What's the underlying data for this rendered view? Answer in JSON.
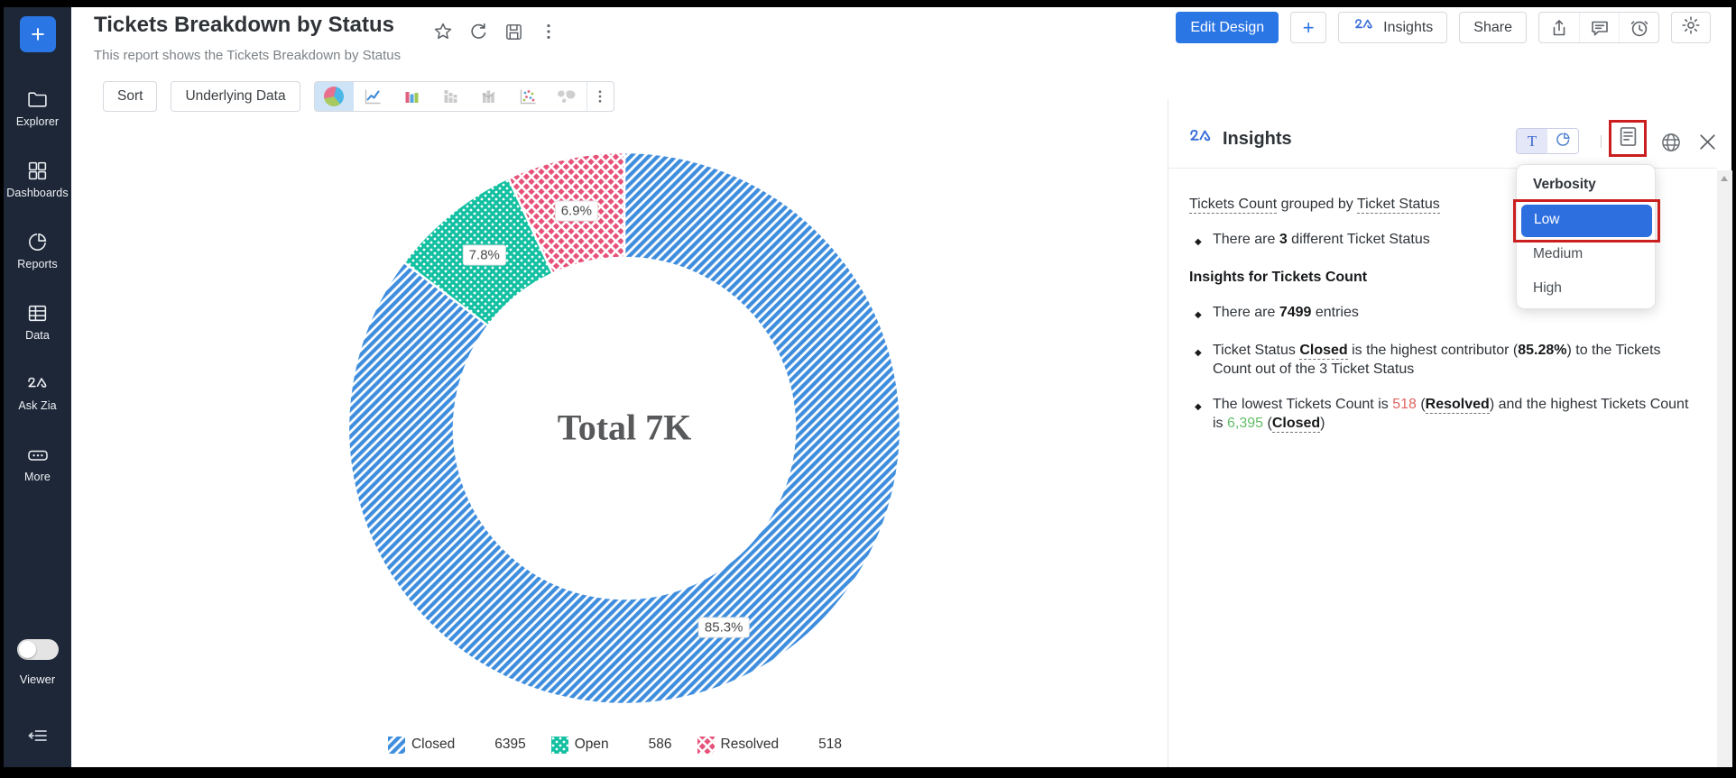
{
  "sidebar": {
    "plus_label": "+",
    "items": [
      {
        "label": "Explorer",
        "icon": "folder-icon"
      },
      {
        "label": "Dashboards",
        "icon": "dashboards-icon"
      },
      {
        "label": "Reports",
        "icon": "reports-pie-icon"
      },
      {
        "label": "Data",
        "icon": "data-table-icon"
      },
      {
        "label": "Ask Zia",
        "icon": "zia-icon"
      },
      {
        "label": "More",
        "icon": "more-ellipsis-icon"
      }
    ],
    "viewer_label": "Viewer"
  },
  "header": {
    "title": "Tickets Breakdown by Status",
    "subtitle": "This report shows the Tickets Breakdown by Status",
    "edit_design_label": "Edit Design",
    "plus_label": "+",
    "insights_label": "Insights",
    "share_label": "Share"
  },
  "toolbar": {
    "sort_label": "Sort",
    "underlying_data_label": "Underlying Data"
  },
  "chart_data": {
    "type": "pie",
    "donut": true,
    "title_center": "Total 7K",
    "categories": [
      "Closed",
      "Open",
      "Resolved"
    ],
    "values": [
      6395,
      586,
      518
    ],
    "percent_labels": [
      "85.3%",
      "7.8%",
      "6.9%"
    ],
    "total_entries": 7499,
    "colors": [
      "#3f8ede",
      "#14c0a2",
      "#e65279"
    ],
    "patterns": [
      "diagonal-stripes",
      "dots",
      "crosshatch"
    ],
    "legend_position": "bottom"
  },
  "insights_panel": {
    "title": "Insights",
    "toggle_text_label": "T",
    "blocks": [
      {
        "type": "summary",
        "segments": [
          {
            "t": "Tickets Count",
            "s": "u"
          },
          {
            "t": " grouped by ",
            "s": ""
          },
          {
            "t": "Ticket Status",
            "s": "u"
          }
        ]
      },
      {
        "type": "bullet",
        "segments": [
          {
            "t": "There are ",
            "s": ""
          },
          {
            "t": "3",
            "s": "b"
          },
          {
            "t": " different Ticket Status",
            "s": ""
          }
        ]
      },
      {
        "type": "heading",
        "segments": [
          {
            "t": "Insights for Tickets Count",
            "s": "b"
          }
        ]
      },
      {
        "type": "bullet",
        "segments": [
          {
            "t": "There are ",
            "s": ""
          },
          {
            "t": "7499",
            "s": "b"
          },
          {
            "t": " entries",
            "s": ""
          }
        ]
      },
      {
        "type": "bullet",
        "segments": [
          {
            "t": "Ticket Status ",
            "s": ""
          },
          {
            "t": "Closed",
            "s": "bu"
          },
          {
            "t": " is the highest contributor (",
            "s": ""
          },
          {
            "t": "85.28%",
            "s": "b"
          },
          {
            "t": ") to the Tickets Count out of the 3 Ticket Status",
            "s": ""
          }
        ]
      },
      {
        "type": "bullet",
        "segments": [
          {
            "t": "The lowest Tickets Count is ",
            "s": ""
          },
          {
            "t": "518",
            "s": "red"
          },
          {
            "t": " (",
            "s": ""
          },
          {
            "t": "Resolved",
            "s": "bu"
          },
          {
            "t": ") and the highest Tickets Count is ",
            "s": ""
          },
          {
            "t": "6,395",
            "s": "green"
          },
          {
            "t": " (",
            "s": ""
          },
          {
            "t": "Closed",
            "s": "bu"
          },
          {
            "t": ")",
            "s": ""
          }
        ]
      }
    ],
    "dropdown": {
      "header": "Verbosity",
      "options": [
        "Low",
        "Medium",
        "High"
      ],
      "selected": "Low"
    }
  }
}
